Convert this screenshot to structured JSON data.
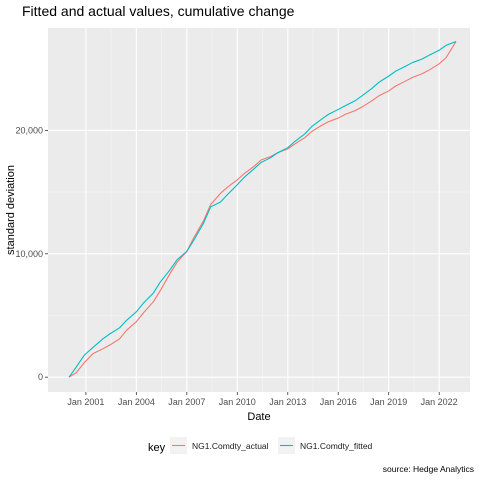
{
  "chart_data": {
    "type": "line",
    "title": "Fitted and actual values, cumulative change",
    "xlabel": "Date",
    "ylabel": "standard deviation",
    "caption": "source: Hedge Analytics",
    "x_range": [
      "1998-10-01",
      "2023-11-01"
    ],
    "ylim": [
      -1200,
      28300
    ],
    "x_ticks": [
      {
        "date": "2001-01-01",
        "label": "Jan 2001"
      },
      {
        "date": "2004-01-01",
        "label": "Jan 2004"
      },
      {
        "date": "2007-01-01",
        "label": "Jan 2007"
      },
      {
        "date": "2010-01-01",
        "label": "Jan 2010"
      },
      {
        "date": "2013-01-01",
        "label": "Jan 2013"
      },
      {
        "date": "2016-01-01",
        "label": "Jan 2016"
      },
      {
        "date": "2019-01-01",
        "label": "Jan 2019"
      },
      {
        "date": "2022-01-01",
        "label": "Jan 2022"
      }
    ],
    "y_ticks": [
      {
        "value": 0,
        "label": "0"
      },
      {
        "value": 10000,
        "label": "10,000"
      },
      {
        "value": 20000,
        "label": "20,000"
      }
    ],
    "grid": true,
    "background": "#ebebeb",
    "legend": {
      "title": "key",
      "position": "bottom"
    },
    "series": [
      {
        "name": "NG1.Comdty_actual",
        "color": "#f8766d",
        "x": [
          "2000-01-01",
          "2000-06-01",
          "2000-12-01",
          "2001-06-01",
          "2002-01-01",
          "2002-06-01",
          "2003-01-01",
          "2003-06-01",
          "2004-01-01",
          "2004-06-01",
          "2005-01-01",
          "2005-06-01",
          "2006-01-01",
          "2006-06-01",
          "2007-01-01",
          "2007-06-01",
          "2008-01-01",
          "2008-06-01",
          "2009-01-01",
          "2009-06-01",
          "2010-01-01",
          "2010-06-01",
          "2011-01-01",
          "2011-06-01",
          "2012-01-01",
          "2012-06-01",
          "2013-01-01",
          "2013-06-01",
          "2014-01-01",
          "2014-06-01",
          "2015-01-01",
          "2015-06-01",
          "2016-01-01",
          "2016-06-01",
          "2017-01-01",
          "2017-06-01",
          "2018-01-01",
          "2018-06-01",
          "2019-01-01",
          "2019-06-01",
          "2020-01-01",
          "2020-06-01",
          "2021-01-01",
          "2021-06-01",
          "2022-01-01",
          "2022-06-01",
          "2023-01-01"
        ],
        "values": [
          0,
          350,
          1200,
          1900,
          2300,
          2600,
          3100,
          3800,
          4500,
          5200,
          6100,
          7000,
          8400,
          9300,
          10200,
          11300,
          12700,
          14000,
          14900,
          15400,
          16000,
          16500,
          17100,
          17600,
          17900,
          18200,
          18500,
          18900,
          19400,
          19900,
          20400,
          20700,
          21000,
          21300,
          21600,
          21900,
          22400,
          22800,
          23200,
          23600,
          24000,
          24300,
          24600,
          24900,
          25400,
          25900,
          27200
        ]
      },
      {
        "name": "NG1.Comdty_fitted",
        "color": "#00bfc4",
        "x": [
          "2000-01-01",
          "2000-06-01",
          "2000-12-01",
          "2001-06-01",
          "2002-01-01",
          "2002-06-01",
          "2003-01-01",
          "2003-06-01",
          "2004-01-01",
          "2004-06-01",
          "2005-01-01",
          "2005-06-01",
          "2006-01-01",
          "2006-06-01",
          "2007-01-01",
          "2007-06-01",
          "2008-01-01",
          "2008-06-01",
          "2009-01-01",
          "2009-06-01",
          "2010-01-01",
          "2010-06-01",
          "2011-01-01",
          "2011-06-01",
          "2012-01-01",
          "2012-06-01",
          "2013-01-01",
          "2013-06-01",
          "2014-01-01",
          "2014-06-01",
          "2015-01-01",
          "2015-06-01",
          "2016-01-01",
          "2016-06-01",
          "2017-01-01",
          "2017-06-01",
          "2018-01-01",
          "2018-06-01",
          "2019-01-01",
          "2019-06-01",
          "2020-01-01",
          "2020-06-01",
          "2021-01-01",
          "2021-06-01",
          "2022-01-01",
          "2022-06-01",
          "2023-01-01"
        ],
        "values": [
          0,
          800,
          1800,
          2400,
          3100,
          3500,
          4000,
          4600,
          5300,
          6000,
          6800,
          7700,
          8700,
          9500,
          10200,
          11100,
          12500,
          13800,
          14200,
          14800,
          15600,
          16200,
          16900,
          17400,
          17800,
          18200,
          18600,
          19100,
          19700,
          20300,
          20900,
          21300,
          21700,
          22000,
          22400,
          22800,
          23400,
          23900,
          24400,
          24800,
          25200,
          25500,
          25800,
          26100,
          26500,
          26900,
          27200
        ]
      }
    ]
  }
}
